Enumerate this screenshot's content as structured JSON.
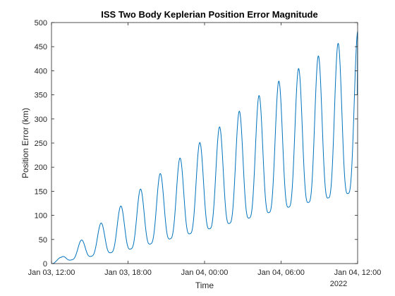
{
  "chart_data": {
    "type": "line",
    "title": "ISS Two Body Keplerian Position Error Magnitude",
    "xlabel": "Time",
    "ylabel": "Position Error (km)",
    "x_tick_labels": [
      "Jan 03, 12:00",
      "Jan 03, 18:00",
      "Jan 04, 00:00",
      "Jan 04, 06:00",
      "Jan 04, 12:00"
    ],
    "x_secondary_label": "2022",
    "x_range_hours": [
      0,
      24
    ],
    "y_ticks": [
      0,
      50,
      100,
      150,
      200,
      250,
      300,
      350,
      400,
      450,
      500
    ],
    "ylim": [
      0,
      500
    ],
    "series": [
      {
        "color": "#0072BD",
        "orbit_period_hours": 1.55,
        "peaks": [
          {
            "x_hours": 0.77,
            "y": 13
          },
          {
            "x_hours": 6.9,
            "y": 153
          },
          {
            "x_hours": 12.05,
            "y": 260
          },
          {
            "x_hours": 17.2,
            "y": 368
          },
          {
            "x_hours": 23.85,
            "y": 480
          }
        ],
        "troughs": [
          {
            "x_hours": 0.0,
            "y": 0
          },
          {
            "x_hours": 6.17,
            "y": 30
          },
          {
            "x_hours": 12.8,
            "y": 75
          },
          {
            "x_hours": 19.0,
            "y": 120
          },
          {
            "x_hours": 23.2,
            "y": 145
          }
        ],
        "end_value": 350
      }
    ],
    "grid": false,
    "legend": "none"
  }
}
